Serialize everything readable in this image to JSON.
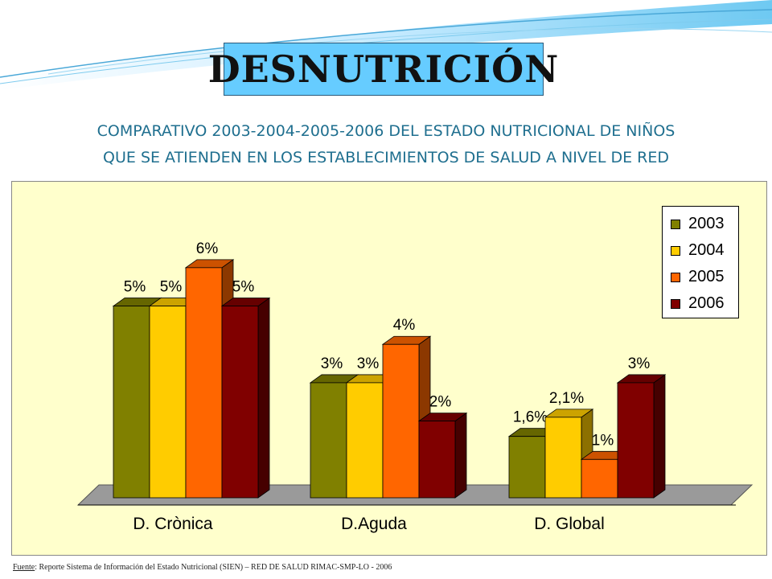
{
  "slide": {
    "title": "DESNUTRICIÓN",
    "subtitle_line1": "COMPARATIVO 2003-2004-2005-2006 DEL ESTADO NUTRICIONAL DE NIÑOS",
    "subtitle_line2": "QUE SE ATIENDEN EN LOS ESTABLECIMIENTOS DE SALUD A NIVEL DE RED",
    "source_label": "Fuente",
    "source_text": ": Reporte Sistema de Información del Estado Nutricional (SIEN) – RED DE SALUD RIMAC-SMP-LO - 2006"
  },
  "colors": {
    "title_bg": "#66ccff",
    "chart_bg": "#ffffcc",
    "subtitle": "#1f6f8f"
  },
  "chart_data": {
    "type": "bar",
    "categories": [
      "D. Crònica",
      "D.Aguda",
      "D. Global"
    ],
    "series": [
      {
        "name": "2003",
        "color": "#808000",
        "values": [
          5,
          3,
          1.6
        ],
        "labels": [
          "5%",
          "3%",
          "1,6%"
        ]
      },
      {
        "name": "2004",
        "color": "#ffcc00",
        "values": [
          5,
          3,
          2.1
        ],
        "labels": [
          "5%",
          "3%",
          "2,1%"
        ]
      },
      {
        "name": "2005",
        "color": "#ff6600",
        "values": [
          6,
          4,
          1
        ],
        "labels": [
          "6%",
          "4%",
          "1%"
        ]
      },
      {
        "name": "2006",
        "color": "#800000",
        "values": [
          5,
          2,
          3
        ],
        "labels": [
          "5%",
          "2%",
          "3%"
        ]
      }
    ],
    "ylim": [
      0,
      6.5
    ],
    "grid": false,
    "legend_position": "top-right"
  }
}
